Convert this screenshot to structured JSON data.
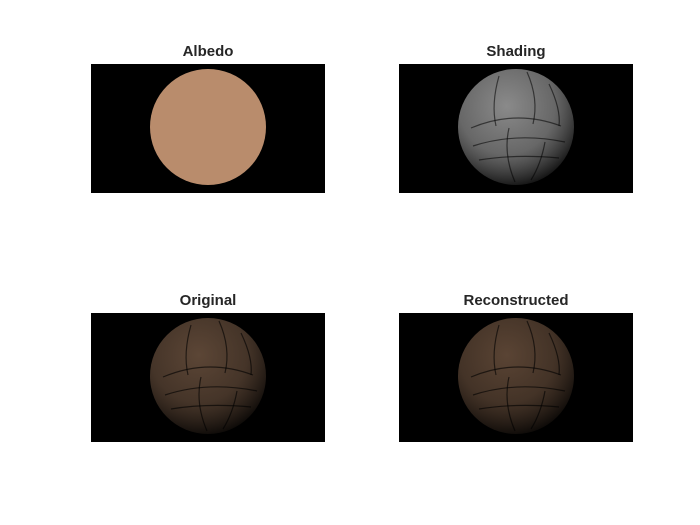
{
  "panels": [
    {
      "id": "albedo",
      "title": "Albedo",
      "kind": "flat",
      "ball_color": "#b98c6c"
    },
    {
      "id": "shading",
      "title": "Shading",
      "kind": "shaded",
      "ball_color": "#8a8a8a"
    },
    {
      "id": "original",
      "title": "Original",
      "kind": "shaded",
      "ball_color": "#5c4636"
    },
    {
      "id": "reconstructed",
      "title": "Reconstructed",
      "kind": "shaded",
      "ball_color": "#5a4434"
    }
  ]
}
